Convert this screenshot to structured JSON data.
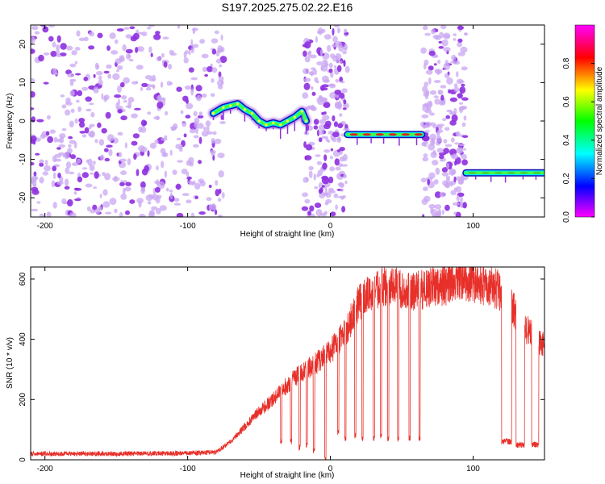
{
  "title": "S197.2025.275.02.22.E16",
  "colors": {
    "snr_line": "#e8302a",
    "blob": "#8e2fe0",
    "blob_light": "#c9a7f2",
    "band_core": "#e02020",
    "band_mid": "#40ff40",
    "band_edge": "#1010b0"
  },
  "chart_data": [
    {
      "id": "spectrogram",
      "type": "heatmap",
      "title": "S197.2025.275.02.22.E16",
      "xlabel": "Height of straight line (km)",
      "ylabel": "Frequency (Hz)",
      "xlim": [
        -210,
        150
      ],
      "ylim": [
        -25,
        25
      ],
      "xticks": [
        -200,
        -100,
        0,
        100
      ],
      "yticks": [
        -20,
        -10,
        0,
        10,
        20
      ],
      "colorbar": {
        "label": "Normalized spectral amplitude",
        "range": [
          0.0,
          1.0
        ],
        "ticks": [
          0.0,
          0.2,
          0.4,
          0.6,
          0.8
        ],
        "tick_labels": [
          "0.0",
          "0.2",
          "0.4",
          "0.6",
          "0.8"
        ],
        "colormap": [
          "#ff00ff",
          "#0000ff",
          "#00ffff",
          "#00ff00",
          "#ffff00",
          "#ff0000",
          "#ff00ff"
        ]
      },
      "noise_regions": [
        {
          "x_range": [
            -210,
            -75
          ],
          "y_range": [
            -25,
            25
          ],
          "density": "high"
        },
        {
          "x_range": [
            -18,
            12
          ],
          "y_range": [
            -25,
            25
          ],
          "density": "medium"
        },
        {
          "x_range": [
            65,
            95
          ],
          "y_range": [
            -25,
            25
          ],
          "density": "medium"
        }
      ],
      "signal_tracks": [
        {
          "name": "track-1",
          "points": [
            [
              -82,
              2
            ],
            [
              -75,
              3.5
            ],
            [
              -70,
              4
            ],
            [
              -65,
              4.5
            ],
            [
              -60,
              3
            ],
            [
              -55,
              2
            ],
            [
              -50,
              0
            ],
            [
              -45,
              -1
            ],
            [
              -40,
              -0.5
            ],
            [
              -35,
              -1
            ],
            [
              -30,
              0
            ],
            [
              -25,
              1
            ],
            [
              -20,
              2.5
            ],
            [
              -17,
              0
            ]
          ]
        },
        {
          "name": "band-1",
          "x_range": [
            12,
            64
          ],
          "frequency": -3.5
        },
        {
          "name": "band-2",
          "x_range": [
            95,
            150
          ],
          "frequency": -13.5
        }
      ]
    },
    {
      "id": "snr",
      "type": "line",
      "xlabel": "Height of straight line (km)",
      "ylabel": "SNR (10 * v/v)",
      "xlim": [
        -210,
        150
      ],
      "ylim": [
        0,
        640
      ],
      "xticks": [
        -200,
        -100,
        0,
        100
      ],
      "yticks": [
        0,
        200,
        400,
        600
      ],
      "series": [
        {
          "name": "SNR",
          "envelope_x": [
            -210,
            -150,
            -100,
            -80,
            -70,
            -60,
            -50,
            -40,
            -30,
            -20,
            -10,
            0,
            10,
            20,
            30,
            40,
            50,
            60,
            70,
            80,
            90,
            100,
            110,
            120,
            125,
            130,
            140,
            150
          ],
          "envelope_y": [
            20,
            20,
            22,
            25,
            60,
            110,
            160,
            200,
            250,
            290,
            320,
            360,
            420,
            520,
            560,
            580,
            570,
            560,
            570,
            580,
            600,
            590,
            580,
            560,
            540,
            480,
            420,
            380
          ],
          "dropouts": [
            [
              -35,
              -34,
              60
            ],
            [
              -28,
              -27,
              60
            ],
            [
              -22,
              -21,
              40
            ],
            [
              -17,
              -16,
              50
            ],
            [
              -12,
              -11,
              30
            ],
            [
              -4,
              -3,
              0
            ],
            [
              5,
              6,
              90
            ],
            [
              10,
              11,
              70
            ],
            [
              17,
              18,
              80
            ],
            [
              22,
              23,
              70
            ],
            [
              30,
              31,
              70
            ],
            [
              35,
              36,
              80
            ],
            [
              40,
              41,
              70
            ],
            [
              47,
              48,
              70
            ],
            [
              55,
              56,
              70
            ],
            [
              62,
              63,
              70
            ],
            [
              120,
              127,
              60
            ],
            [
              130,
              136,
              50
            ],
            [
              141,
              146,
              50
            ]
          ]
        }
      ]
    }
  ]
}
